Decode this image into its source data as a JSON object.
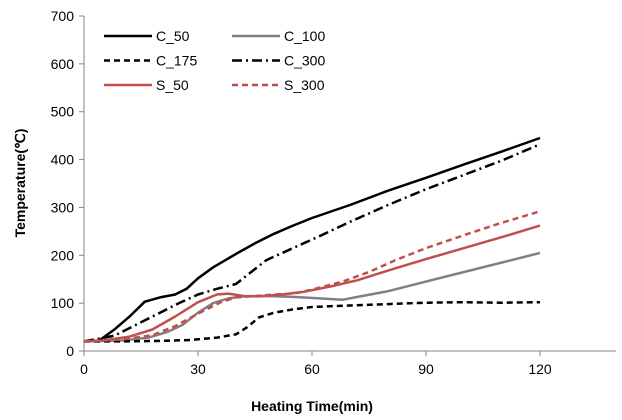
{
  "chart_data": {
    "type": "line",
    "title": "",
    "xlabel": "Heating Time(min)",
    "ylabel": "Temperature(℃)",
    "xlim": [
      0,
      140
    ],
    "ylim": [
      0,
      700
    ],
    "xticks": [
      0,
      30,
      60,
      90,
      120
    ],
    "yticks": [
      0,
      100,
      200,
      300,
      400,
      500,
      600,
      700
    ],
    "grid": false,
    "legend_position": "top-left",
    "series": [
      {
        "name": "C_50",
        "color": "#000000",
        "dash": "solid",
        "points": [
          [
            0,
            20
          ],
          [
            4,
            22
          ],
          [
            8,
            45
          ],
          [
            12,
            72
          ],
          [
            16,
            103
          ],
          [
            20,
            112
          ],
          [
            24,
            118
          ],
          [
            27,
            130
          ],
          [
            30,
            152
          ],
          [
            34,
            175
          ],
          [
            40,
            203
          ],
          [
            45,
            225
          ],
          [
            50,
            245
          ],
          [
            55,
            262
          ],
          [
            60,
            278
          ],
          [
            70,
            305
          ],
          [
            80,
            335
          ],
          [
            90,
            362
          ],
          [
            100,
            390
          ],
          [
            110,
            417
          ],
          [
            120,
            445
          ]
        ]
      },
      {
        "name": "C_100",
        "color": "#808080",
        "dash": "solid",
        "points": [
          [
            0,
            20
          ],
          [
            10,
            22
          ],
          [
            17,
            28
          ],
          [
            22,
            40
          ],
          [
            26,
            55
          ],
          [
            30,
            80
          ],
          [
            34,
            100
          ],
          [
            38,
            110
          ],
          [
            42,
            114
          ],
          [
            48,
            115
          ],
          [
            55,
            113
          ],
          [
            62,
            110
          ],
          [
            68,
            107
          ],
          [
            72,
            113
          ],
          [
            80,
            125
          ],
          [
            90,
            145
          ],
          [
            100,
            165
          ],
          [
            110,
            185
          ],
          [
            120,
            205
          ]
        ]
      },
      {
        "name": "C_175",
        "color": "#000000",
        "dash": "dashed",
        "points": [
          [
            0,
            20
          ],
          [
            10,
            20
          ],
          [
            20,
            21
          ],
          [
            28,
            23
          ],
          [
            35,
            28
          ],
          [
            40,
            35
          ],
          [
            43,
            50
          ],
          [
            46,
            70
          ],
          [
            50,
            80
          ],
          [
            55,
            87
          ],
          [
            60,
            92
          ],
          [
            70,
            95
          ],
          [
            80,
            98
          ],
          [
            90,
            101
          ],
          [
            100,
            102
          ],
          [
            110,
            101
          ],
          [
            120,
            102
          ]
        ]
      },
      {
        "name": "C_300",
        "color": "#000000",
        "dash": "dashdot",
        "points": [
          [
            0,
            20
          ],
          [
            8,
            32
          ],
          [
            15,
            60
          ],
          [
            20,
            80
          ],
          [
            25,
            100
          ],
          [
            30,
            118
          ],
          [
            35,
            130
          ],
          [
            40,
            140
          ],
          [
            44,
            165
          ],
          [
            48,
            190
          ],
          [
            55,
            215
          ],
          [
            62,
            240
          ],
          [
            70,
            270
          ],
          [
            80,
            305
          ],
          [
            90,
            338
          ],
          [
            100,
            368
          ],
          [
            110,
            398
          ],
          [
            120,
            432
          ]
        ]
      },
      {
        "name": "S_50",
        "color": "#c0504d",
        "dash": "solid",
        "points": [
          [
            0,
            20
          ],
          [
            5,
            22
          ],
          [
            12,
            30
          ],
          [
            18,
            45
          ],
          [
            24,
            72
          ],
          [
            30,
            102
          ],
          [
            35,
            118
          ],
          [
            38,
            120
          ],
          [
            42,
            115
          ],
          [
            46,
            114
          ],
          [
            52,
            118
          ],
          [
            58,
            124
          ],
          [
            65,
            135
          ],
          [
            72,
            148
          ],
          [
            80,
            168
          ],
          [
            90,
            192
          ],
          [
            100,
            215
          ],
          [
            110,
            238
          ],
          [
            120,
            262
          ]
        ]
      },
      {
        "name": "S_300",
        "color": "#c0504d",
        "dash": "dashed",
        "points": [
          [
            0,
            20
          ],
          [
            10,
            24
          ],
          [
            18,
            33
          ],
          [
            24,
            52
          ],
          [
            30,
            78
          ],
          [
            36,
            102
          ],
          [
            40,
            112
          ],
          [
            45,
            115
          ],
          [
            50,
            118
          ],
          [
            55,
            120
          ],
          [
            60,
            128
          ],
          [
            68,
            145
          ],
          [
            75,
            165
          ],
          [
            82,
            190
          ],
          [
            90,
            215
          ],
          [
            100,
            242
          ],
          [
            110,
            268
          ],
          [
            120,
            292
          ]
        ]
      }
    ]
  }
}
